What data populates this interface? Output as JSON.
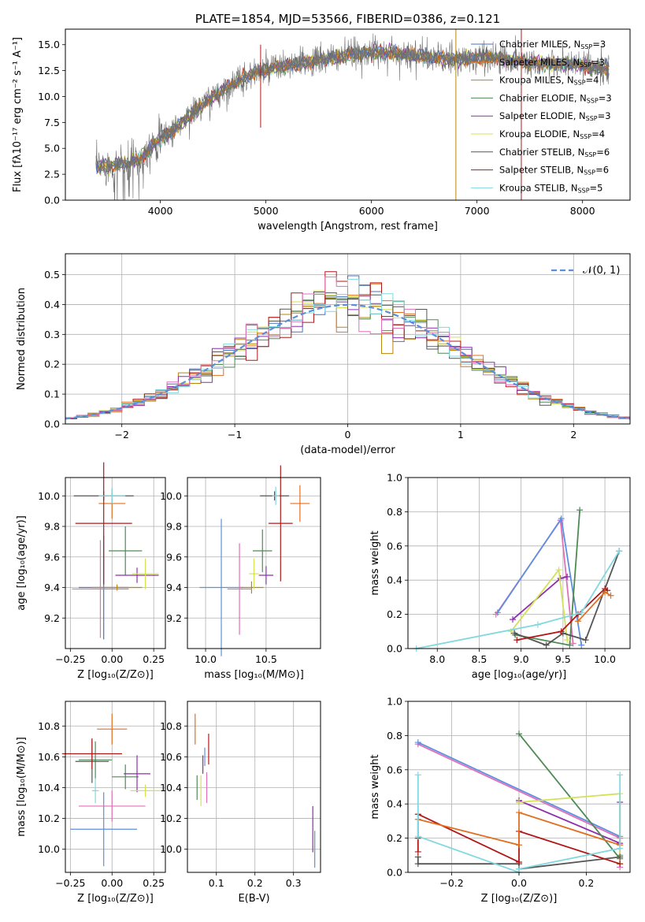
{
  "colors": {
    "chabrier_miles": "#4472c4",
    "salpeter_miles": "#e07020",
    "kroupa_miles": "#b8860b",
    "chabrier_elodie": "#4e8a55",
    "salpeter_elodie": "#8e2fad",
    "kroupa_elodie": "#d4e157",
    "chabrier_stelib": "#555555",
    "salpeter_stelib": "#b01818",
    "kroupa_stelib": "#80d8e0",
    "pink": "#e070b8",
    "blue": "#5e8fe0",
    "gaussian": "#5b8fd9"
  },
  "chart_data": [
    {
      "id": "spectrum",
      "type": "line",
      "title": "PLATE=1854, MJD=53566, FIBERID=0386, z=0.121",
      "xlabel": "wavelength [Angstrom, rest frame]",
      "ylabel": "Flux [fλ10⁻¹⁷ erg cm⁻² s⁻¹ A⁻¹]",
      "xlim": [
        3100,
        8450
      ],
      "ylim": [
        0,
        16.5
      ],
      "xticks": [
        "4000",
        "5000",
        "6000",
        "7000",
        "8000"
      ],
      "xtick_values": [
        4000,
        5000,
        6000,
        7000,
        8000
      ],
      "yticks": [
        "0.0",
        "2.5",
        "5.0",
        "7.5",
        "10.0",
        "12.5",
        "15.0"
      ],
      "ytick_values": [
        0,
        2.5,
        5,
        7.5,
        10,
        12.5,
        15
      ],
      "legend_position": "upper-right",
      "legend": [
        {
          "text": "Chabrier MILES, N",
          "sub": "SSP",
          "suffix": "=3",
          "color": "#4472c4"
        },
        {
          "text": "Salpeter MILES, N",
          "sub": "SSP",
          "suffix": "=3",
          "color": "#e07020"
        },
        {
          "text": "Kroupa MILES, N",
          "sub": "SSP",
          "suffix": "=4",
          "color": "#b8860b"
        },
        {
          "text": "Chabrier ELODIE, N",
          "sub": "SSP",
          "suffix": "=3",
          "color": "#4e8a55"
        },
        {
          "text": "Salpeter ELODIE, N",
          "sub": "SSP",
          "suffix": "=3",
          "color": "#8e2fad"
        },
        {
          "text": "Kroupa ELODIE, N",
          "sub": "SSP",
          "suffix": "=4",
          "color": "#d4e157"
        },
        {
          "text": "Chabrier STELIB, N",
          "sub": "SSP",
          "suffix": "=6",
          "color": "#555555"
        },
        {
          "text": "Salpeter STELIB, N",
          "sub": "SSP",
          "suffix": "=6",
          "color": "#b01818"
        },
        {
          "text": "Kroupa STELIB, N",
          "sub": "SSP",
          "suffix": "=5",
          "color": "#80d8e0"
        }
      ],
      "continuum": {
        "x": [
          3400,
          3600,
          3800,
          3900,
          4000,
          4100,
          4200,
          4300,
          4400,
          4500,
          4700,
          4900,
          5100,
          5300,
          5500,
          5700,
          5900,
          6100,
          6300,
          6500,
          6700,
          6900,
          7100,
          7300,
          7500,
          7700,
          7900,
          8100,
          8250
        ],
        "y": [
          3.3,
          3.4,
          3.9,
          5.0,
          6.0,
          6.6,
          7.4,
          8.4,
          9.2,
          10.0,
          11.3,
          12.3,
          12.8,
          13.1,
          13.5,
          13.8,
          14.2,
          14.3,
          14.1,
          13.9,
          13.6,
          13.6,
          13.8,
          13.6,
          13.3,
          13.1,
          13.1,
          12.8,
          12.6
        ]
      }
    },
    {
      "id": "residuals",
      "type": "step",
      "xlabel": "(data-model)/error",
      "ylabel": "Normed distribution",
      "xlim": [
        -2.5,
        2.5
      ],
      "ylim": [
        0,
        0.57
      ],
      "xticks": [
        "−2",
        "−1",
        "0",
        "1",
        "2"
      ],
      "xtick_values": [
        -2,
        -1,
        0,
        1,
        2
      ],
      "yticks": [
        "0.0",
        "0.1",
        "0.2",
        "0.3",
        "0.4",
        "0.5"
      ],
      "ytick_values": [
        0,
        0.1,
        0.2,
        0.3,
        0.4,
        0.5
      ],
      "legend": [
        {
          "text": "𝒩(0, 1)",
          "color": "#5b8fd9"
        }
      ],
      "bin_width": 0.1,
      "bin_start": -2.5
    },
    {
      "id": "age_vs_Z",
      "type": "errorbar",
      "xlabel": "Z [log₁₀(Z/Z⊙)]",
      "ylabel": "age  [log₁₀(age/yr)]",
      "xlim": [
        -0.28,
        0.32
      ],
      "ylim": [
        9.0,
        10.12
      ],
      "xticks": [
        "−0.25",
        "0.00",
        "0.25"
      ],
      "xtick_values": [
        -0.25,
        0,
        0.25
      ],
      "yticks": [
        "9.2",
        "9.4",
        "9.6",
        "9.8",
        "10.0"
      ],
      "ytick_values": [
        9.2,
        9.4,
        9.6,
        9.8,
        10.0
      ],
      "points": [
        {
          "x": -0.05,
          "y": 9.4,
          "xerr": 0.15,
          "yerr": 0.34,
          "color": "#4472c4"
        },
        {
          "x": 0.0,
          "y": 9.95,
          "xerr": 0.08,
          "yerr": 0.1,
          "color": "#e07020"
        },
        {
          "x": 0.03,
          "y": 9.4,
          "xerr": 0.15,
          "yerr": 0.02,
          "color": "#b8860b"
        },
        {
          "x": 0.08,
          "y": 9.64,
          "xerr": 0.1,
          "yerr": 0.16,
          "color": "#4e8a55"
        },
        {
          "x": 0.15,
          "y": 9.48,
          "xerr": 0.13,
          "yerr": 0.05,
          "color": "#8e2fad"
        },
        {
          "x": 0.2,
          "y": 9.49,
          "xerr": 0.08,
          "yerr": 0.1,
          "color": "#d4e157"
        },
        {
          "x": -0.05,
          "y": 10.0,
          "xerr": 0.18,
          "yerr": 0.03,
          "color": "#555555"
        },
        {
          "x": -0.05,
          "y": 9.82,
          "xerr": 0.17,
          "yerr": 0.4,
          "color": "#b01818"
        },
        {
          "x": 0.0,
          "y": 10.0,
          "xerr": 0.08,
          "yerr": 0.05,
          "color": "#80d8e0"
        },
        {
          "x": -0.07,
          "y": 9.39,
          "xerr": 0.17,
          "yerr": 0.32,
          "color": "#e070b8"
        }
      ]
    },
    {
      "id": "age_vs_mass",
      "type": "errorbar",
      "xlabel": "mass [log₁₀(M/M⊙)]",
      "ylabel": "",
      "xlim": [
        9.85,
        10.95
      ],
      "ylim": [
        9.0,
        10.12
      ],
      "xticks": [
        "10.0",
        "10.5"
      ],
      "xtick_values": [
        10.0,
        10.5
      ],
      "yticks": [
        "9.2",
        "9.4",
        "9.6",
        "9.8",
        "10.0"
      ],
      "ytick_values": [
        9.2,
        9.4,
        9.6,
        9.8,
        10.0
      ],
      "points": [
        {
          "x": 10.13,
          "y": 9.4,
          "xerr": 0.18,
          "yerr": 0.45,
          "color": "#5e8fe0"
        },
        {
          "x": 10.78,
          "y": 9.95,
          "xerr": 0.08,
          "yerr": 0.12,
          "color": "#e07020"
        },
        {
          "x": 10.38,
          "y": 9.4,
          "xerr": 0.1,
          "yerr": 0.04,
          "color": "#b8860b"
        },
        {
          "x": 10.47,
          "y": 9.64,
          "xerr": 0.08,
          "yerr": 0.14,
          "color": "#4e8a55"
        },
        {
          "x": 10.5,
          "y": 9.48,
          "xerr": 0.06,
          "yerr": 0.06,
          "color": "#8e2fad"
        },
        {
          "x": 10.4,
          "y": 9.49,
          "xerr": 0.04,
          "yerr": 0.1,
          "color": "#d4e157"
        },
        {
          "x": 10.57,
          "y": 10.0,
          "xerr": 0.12,
          "yerr": 0.03,
          "color": "#555555"
        },
        {
          "x": 10.62,
          "y": 9.82,
          "xerr": 0.1,
          "yerr": 0.38,
          "color": "#b01818"
        },
        {
          "x": 10.58,
          "y": 10.0,
          "xerr": 0.03,
          "yerr": 0.06,
          "color": "#80d8e0"
        },
        {
          "x": 10.28,
          "y": 9.39,
          "xerr": 0.1,
          "yerr": 0.3,
          "color": "#e070b8"
        }
      ]
    },
    {
      "id": "weight_vs_age",
      "type": "line",
      "xlabel": "age  [log₁₀(age/yr)]",
      "ylabel": "mass weight",
      "xlim": [
        7.65,
        10.3
      ],
      "ylim": [
        0,
        1.0
      ],
      "xticks": [
        "8.0",
        "8.5",
        "9.0",
        "9.5",
        "10.0"
      ],
      "xtick_values": [
        8.0,
        8.5,
        9.0,
        9.5,
        10.0
      ],
      "yticks": [
        "0.0",
        "0.2",
        "0.4",
        "0.6",
        "0.8",
        "1.0"
      ],
      "ytick_values": [
        0,
        0.2,
        0.4,
        0.6,
        0.8,
        1.0
      ],
      "series": [
        {
          "color": "#e070b8",
          "x": [
            8.7,
            9.47,
            9.62
          ],
          "y": [
            0.2,
            0.75,
            0.03
          ]
        },
        {
          "color": "#5e8fe0",
          "x": [
            8.72,
            9.48,
            9.72
          ],
          "y": [
            0.21,
            0.76,
            0.02
          ]
        },
        {
          "color": "#8e2fad",
          "x": [
            8.9,
            9.47,
            9.55
          ],
          "y": [
            0.17,
            0.41,
            0.42
          ]
        },
        {
          "color": "#4e8a55",
          "x": [
            8.93,
            9.58,
            9.7
          ],
          "y": [
            0.08,
            0.02,
            0.81
          ]
        },
        {
          "color": "#d4e157",
          "x": [
            8.88,
            9.45,
            9.55
          ],
          "y": [
            0.1,
            0.46,
            0.05
          ]
        },
        {
          "color": "#555555",
          "x": [
            8.92,
            9.3,
            9.5,
            9.77,
            10.17
          ],
          "y": [
            0.09,
            0.02,
            0.09,
            0.05,
            0.57
          ]
        },
        {
          "color": "#b01818",
          "x": [
            8.95,
            9.48,
            9.68,
            10.0,
            10.03
          ],
          "y": [
            0.05,
            0.1,
            0.2,
            0.35,
            0.34
          ]
        },
        {
          "color": "#e07020",
          "x": [
            9.68,
            10.0,
            10.07
          ],
          "y": [
            0.16,
            0.33,
            0.31
          ]
        },
        {
          "color": "#80d8e0",
          "x": [
            7.75,
            9.2,
            9.72,
            10.17
          ],
          "y": [
            0.0,
            0.14,
            0.21,
            0.57
          ]
        }
      ]
    },
    {
      "id": "mass_vs_Z",
      "type": "errorbar",
      "xlabel": "Z [log₁₀(Z/Z⊙)]",
      "ylabel": "mass [log₁₀(M/M⊙)]",
      "xlim": [
        -0.28,
        0.32
      ],
      "ylim": [
        9.85,
        10.96
      ],
      "xticks": [
        "−0.25",
        "0.00",
        "0.25"
      ],
      "xtick_values": [
        -0.25,
        0,
        0.25
      ],
      "yticks": [
        "10.0",
        "10.2",
        "10.4",
        "10.6",
        "10.8"
      ],
      "ytick_values": [
        10.0,
        10.2,
        10.4,
        10.6,
        10.8
      ],
      "points": [
        {
          "x": -0.05,
          "y": 10.13,
          "xerr": 0.2,
          "yerr": 0.24,
          "color": "#5e8fe0"
        },
        {
          "x": 0.0,
          "y": 10.78,
          "xerr": 0.09,
          "yerr": 0.1,
          "color": "#e07020"
        },
        {
          "x": -0.1,
          "y": 10.58,
          "xerr": 0.1,
          "yerr": 0.12,
          "color": "#4e8a55"
        },
        {
          "x": 0.08,
          "y": 10.47,
          "xerr": 0.08,
          "yerr": 0.08,
          "color": "#4e8a55"
        },
        {
          "x": 0.15,
          "y": 10.49,
          "xerr": 0.08,
          "yerr": 0.12,
          "color": "#8e2fad"
        },
        {
          "x": 0.2,
          "y": 10.38,
          "xerr": 0.09,
          "yerr": 0.04,
          "color": "#d4e157"
        },
        {
          "x": -0.12,
          "y": 10.57,
          "xerr": 0.1,
          "yerr": 0.14,
          "color": "#555555"
        },
        {
          "x": -0.12,
          "y": 10.62,
          "xerr": 0.18,
          "yerr": 0.1,
          "color": "#b01818"
        },
        {
          "x": -0.1,
          "y": 10.38,
          "xerr": 0.02,
          "yerr": 0.08,
          "color": "#80d8e0"
        },
        {
          "x": 0.0,
          "y": 10.28,
          "xerr": 0.2,
          "yerr": 0.1,
          "color": "#e070b8"
        }
      ]
    },
    {
      "id": "mass_vs_EBV",
      "type": "errorbar",
      "xlabel": "E(B-V)",
      "ylabel": "",
      "xlim": [
        0.025,
        0.37
      ],
      "ylim": [
        9.85,
        10.96
      ],
      "xticks": [
        "0.1",
        "0.2",
        "0.3"
      ],
      "xtick_values": [
        0.1,
        0.2,
        0.3
      ],
      "yticks": [
        "10.0",
        "10.2",
        "10.4",
        "10.6",
        "10.8"
      ],
      "ytick_values": [
        10.0,
        10.2,
        10.4,
        10.6,
        10.8
      ],
      "points": [
        {
          "x": 0.045,
          "y": 10.78,
          "xerr": 0,
          "yerr": 0.1,
          "color": "#e07020"
        },
        {
          "x": 0.05,
          "y": 10.4,
          "xerr": 0,
          "yerr": 0.08,
          "color": "#4e8a55"
        },
        {
          "x": 0.06,
          "y": 10.38,
          "xerr": 0,
          "yerr": 0.1,
          "color": "#d4e157"
        },
        {
          "x": 0.065,
          "y": 10.55,
          "xerr": 0,
          "yerr": 0.06,
          "color": "#8e2fad"
        },
        {
          "x": 0.07,
          "y": 10.6,
          "xerr": 0,
          "yerr": 0.06,
          "color": "#5e8fe0"
        },
        {
          "x": 0.075,
          "y": 10.4,
          "xerr": 0,
          "yerr": 0.1,
          "color": "#e070b8"
        },
        {
          "x": 0.08,
          "y": 10.65,
          "xerr": 0,
          "yerr": 0.1,
          "color": "#b01818"
        },
        {
          "x": 0.35,
          "y": 10.13,
          "xerr": 0,
          "yerr": 0.15,
          "color": "#8e2fad"
        },
        {
          "x": 0.355,
          "y": 10.0,
          "xerr": 0,
          "yerr": 0.12,
          "color": "#5e8fe0"
        }
      ]
    },
    {
      "id": "weight_vs_Z",
      "type": "line",
      "xlabel": "Z [log₁₀(Z/Z⊙)]",
      "ylabel": "mass weight",
      "xlim": [
        -0.33,
        0.33
      ],
      "ylim": [
        0,
        1.0
      ],
      "xticks": [
        "−0.2",
        "0.0",
        "0.2"
      ],
      "xtick_values": [
        -0.2,
        0.0,
        0.2
      ],
      "yticks": [
        "0.0",
        "0.2",
        "0.4",
        "0.6",
        "0.8",
        "1.0"
      ],
      "ytick_values": [
        0,
        0.2,
        0.4,
        0.6,
        0.8,
        1.0
      ],
      "series": [
        {
          "color": "#e070b8",
          "x": [
            -0.3,
            0.3,
            0.3
          ],
          "y": [
            0.75,
            0.2,
            0.03
          ]
        },
        {
          "color": "#5e8fe0",
          "x": [
            -0.3,
            0.3
          ],
          "y": [
            0.76,
            0.21
          ]
        },
        {
          "color": "#8e2fad",
          "x": [
            0.0,
            0.0,
            0.3,
            0.3
          ],
          "y": [
            0.41,
            0.42,
            0.17,
            0.41
          ]
        },
        {
          "color": "#4e8a55",
          "x": [
            0.0,
            0.3,
            0.3
          ],
          "y": [
            0.81,
            0.08,
            0.1
          ]
        },
        {
          "color": "#d4e157",
          "x": [
            0.0,
            0.3,
            0.3
          ],
          "y": [
            0.41,
            0.46,
            0.05
          ]
        },
        {
          "color": "#555555",
          "x": [
            -0.3,
            -0.3,
            0.0,
            0.0,
            0.3
          ],
          "y": [
            0.09,
            0.05,
            0.05,
            0.02,
            0.09
          ]
        },
        {
          "color": "#b01818",
          "x": [
            -0.3,
            -0.3,
            -0.3,
            0.0,
            0.0,
            0.3
          ],
          "y": [
            0.2,
            0.12,
            0.34,
            0.06,
            0.24,
            0.05
          ]
        },
        {
          "color": "#e07020",
          "x": [
            -0.3,
            0.0,
            0.0,
            0.3
          ],
          "y": [
            0.31,
            0.16,
            0.35,
            0.16
          ]
        },
        {
          "color": "#80d8e0",
          "x": [
            -0.3,
            -0.3,
            0.0,
            0.0,
            0.3,
            0.3
          ],
          "y": [
            0.57,
            0.21,
            0.0,
            0.02,
            0.14,
            0.57
          ]
        }
      ]
    }
  ]
}
